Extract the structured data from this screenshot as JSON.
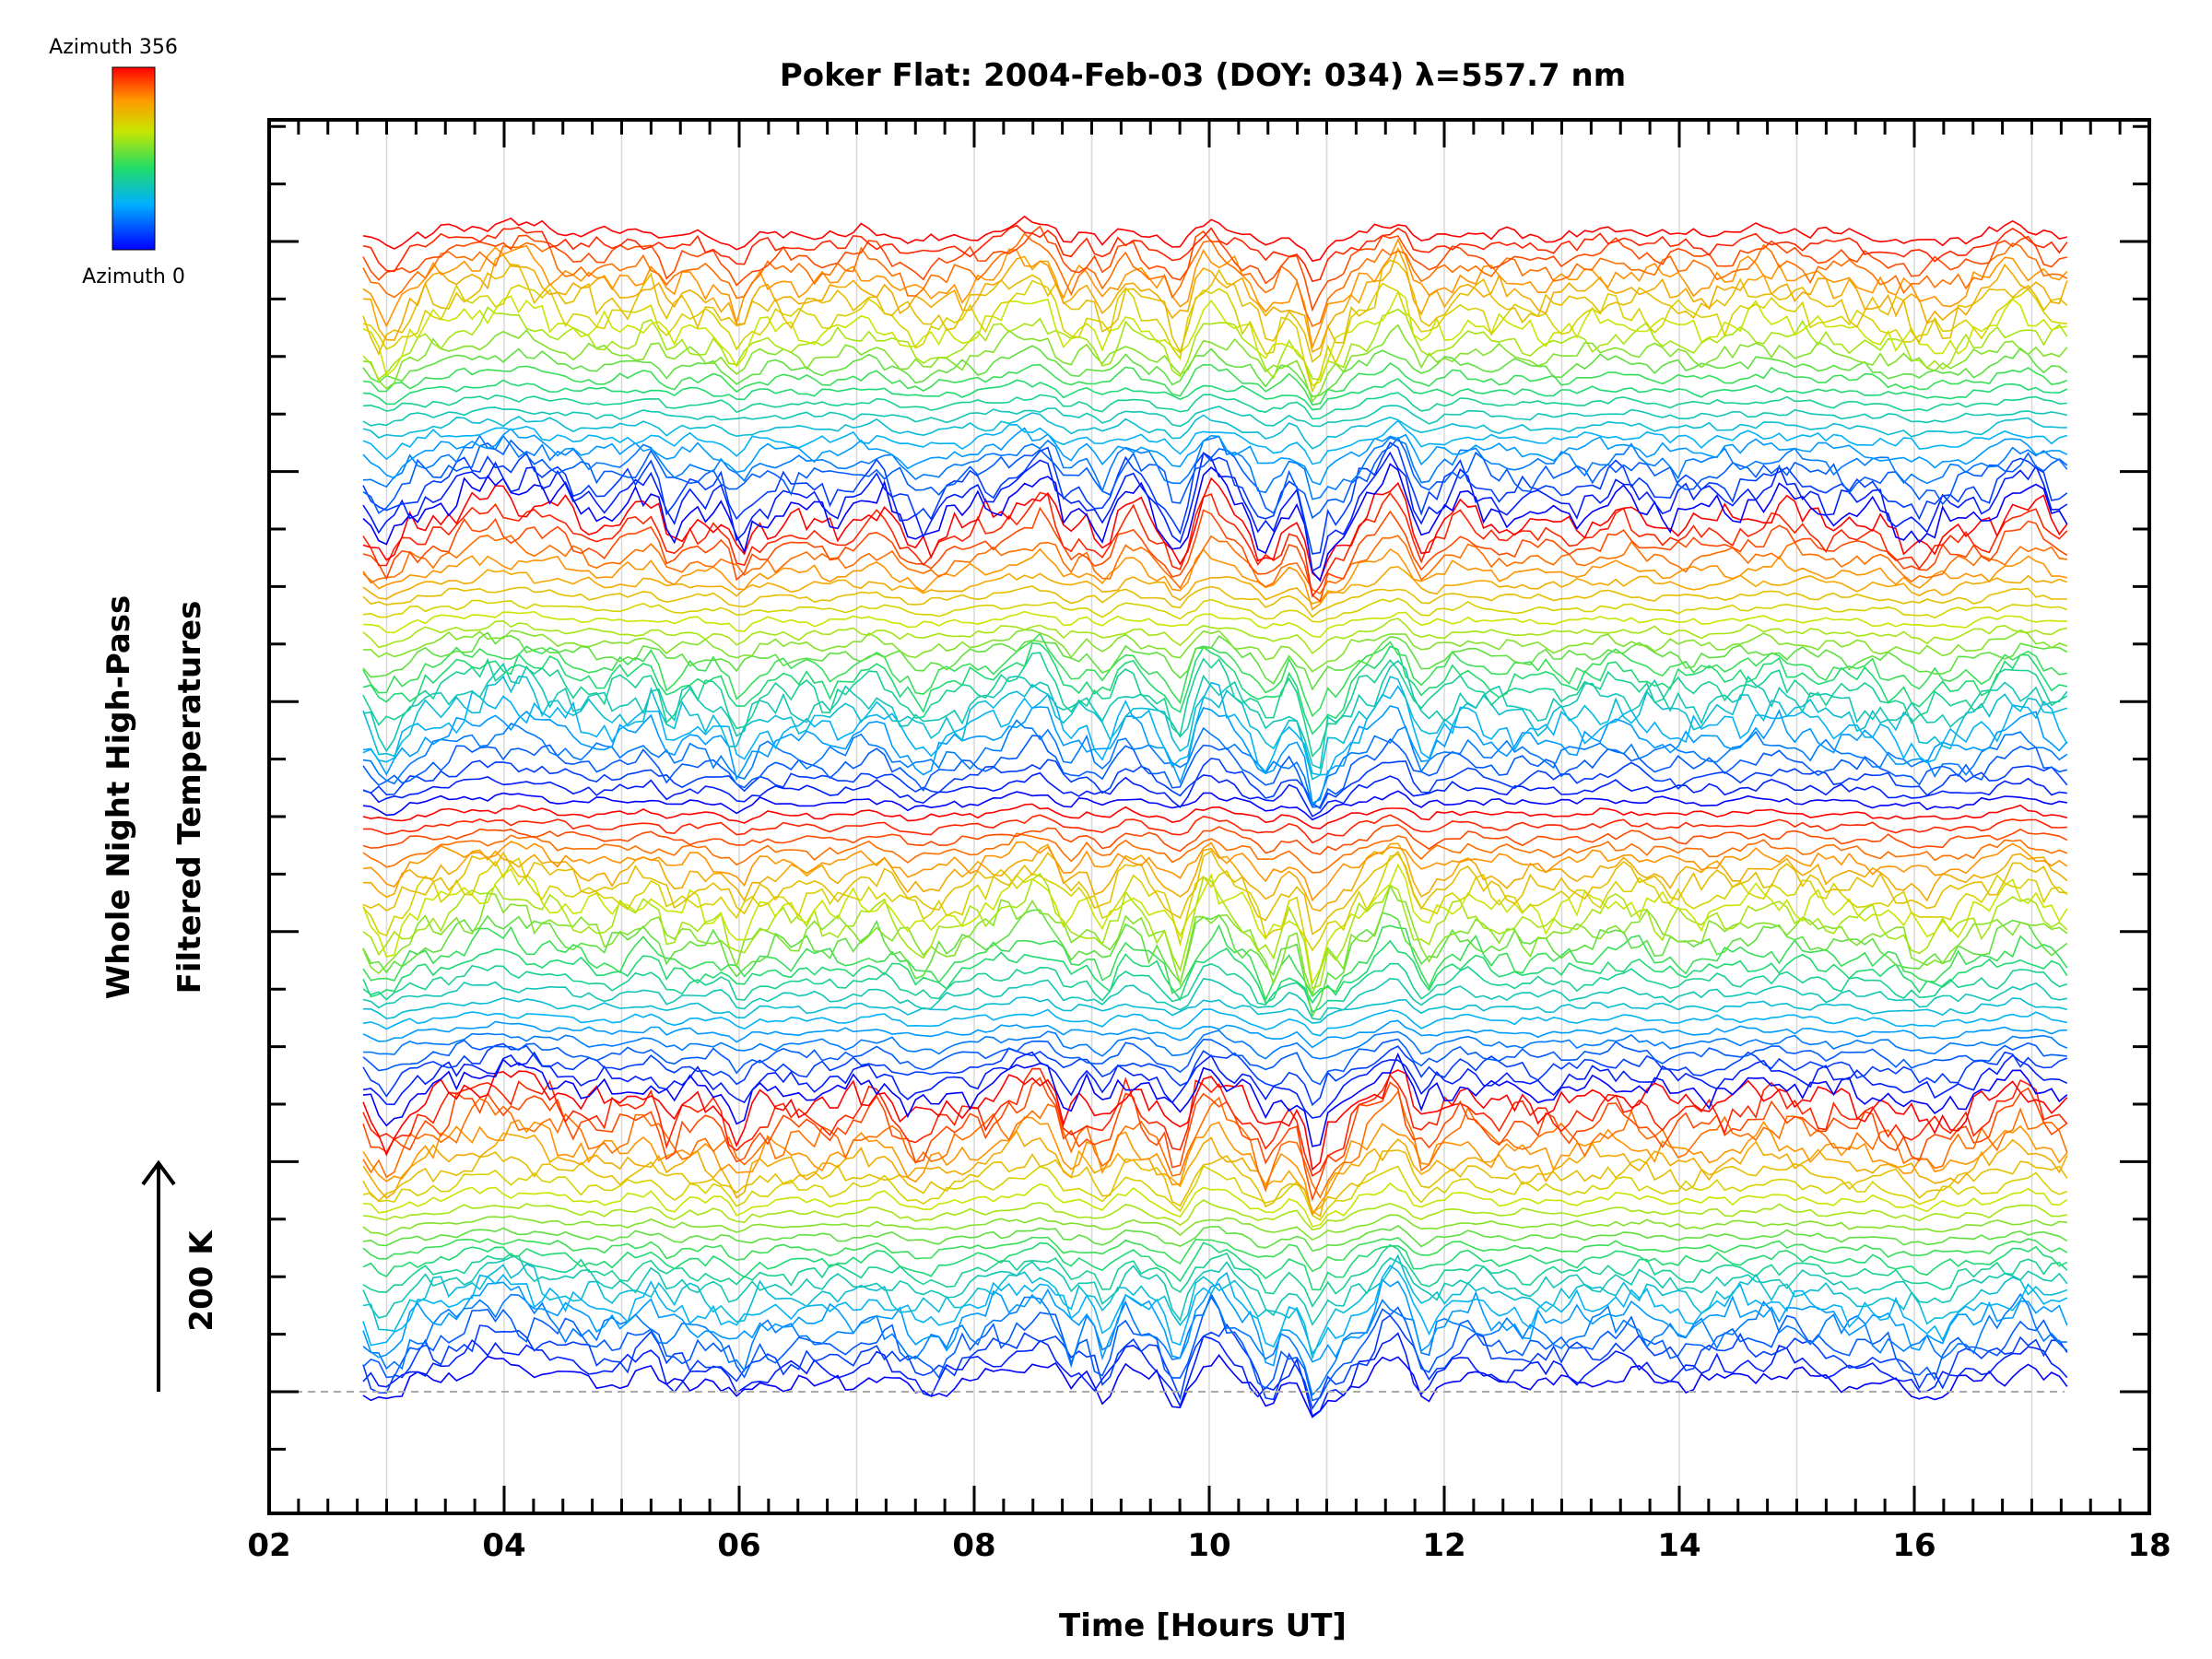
{
  "chart_data": {
    "type": "line",
    "title": "Poker Flat: 2004-Feb-03 (DOY: 034) λ=557.7 nm",
    "xlabel": "Time [Hours UT]",
    "ylabel_line1": "Whole Night High-Pass",
    "ylabel_line2": "Filtered Temperatures",
    "scale_label": "200 K",
    "xlim": [
      2,
      18
    ],
    "x_tick_labels": [
      "02",
      "04",
      "06",
      "08",
      "10",
      "12",
      "14",
      "16",
      "18"
    ],
    "x_ticks": [
      2,
      4,
      6,
      8,
      10,
      12,
      14,
      16,
      18
    ],
    "y_axis_tick_labels": "none",
    "grid": "vertical gridlines every hour",
    "colorbar": {
      "label_max": "Azimuth 356",
      "label_min": "Azimuth 0",
      "colormap": "rainbow: blue (0) → cyan → green → yellow → orange → red (356)",
      "placement": "top-left"
    },
    "data_time_range": [
      2.8,
      17.3
    ],
    "series_count": 96,
    "series_description": "Stacked high-pass filtered temperature traces, one per azimuth, offset vertically; color encodes azimuth"
  }
}
